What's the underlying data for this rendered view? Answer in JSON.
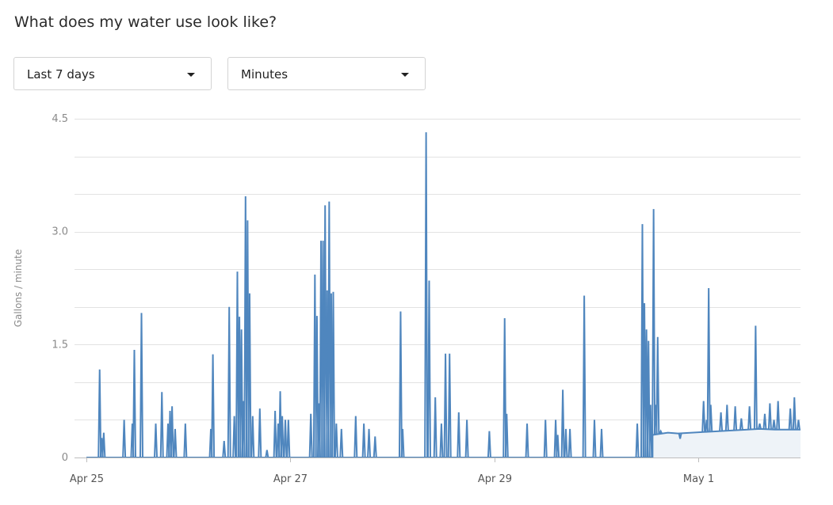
{
  "page": {
    "title": "What does my water use look like?"
  },
  "filters": {
    "range": {
      "selected": "Last 7 days"
    },
    "granularity": {
      "selected": "Minutes"
    }
  },
  "chart_data": {
    "type": "line",
    "title": "",
    "xlabel": "",
    "ylabel": "Gallons / minute",
    "ylim": [
      0,
      4.5
    ],
    "yticks": [
      {
        "value": 0,
        "label": "0"
      },
      {
        "value": 1.5,
        "label": "1.5"
      },
      {
        "value": 3.0,
        "label": "3.0"
      },
      {
        "value": 4.5,
        "label": "4.5"
      }
    ],
    "xlim": [
      0,
      7.0
    ],
    "xticks": [
      {
        "value": 0,
        "label": "Apr 25"
      },
      {
        "value": 2,
        "label": "Apr 27"
      },
      {
        "value": 4,
        "label": "Apr 29"
      },
      {
        "value": 6,
        "label": "May 1"
      }
    ],
    "x_unit": "days from Apr 25",
    "grid": true,
    "colors": {
      "line": "#4f86be",
      "area": "#eef3f8",
      "grid": "#e2e2e2"
    },
    "series": [
      {
        "baseline": 0.0,
        "spikes": [
          [
            0.13,
            1.17
          ],
          [
            0.15,
            0.26
          ],
          [
            0.17,
            0.33
          ],
          [
            0.37,
            0.5
          ],
          [
            0.45,
            0.45
          ],
          [
            0.47,
            1.43
          ],
          [
            0.54,
            1.92
          ],
          [
            0.68,
            0.45
          ],
          [
            0.74,
            0.87
          ],
          [
            0.8,
            0.45
          ],
          [
            0.82,
            0.62
          ],
          [
            0.84,
            0.68
          ],
          [
            0.87,
            0.38
          ],
          [
            0.97,
            0.45
          ],
          [
            1.22,
            0.38
          ],
          [
            1.24,
            1.37
          ],
          [
            1.35,
            0.22
          ],
          [
            1.4,
            2.0
          ],
          [
            1.45,
            0.55
          ],
          [
            1.48,
            2.47
          ],
          [
            1.5,
            1.87
          ],
          [
            1.52,
            1.7
          ],
          [
            1.54,
            0.75
          ],
          [
            1.56,
            3.47
          ],
          [
            1.58,
            3.15
          ],
          [
            1.6,
            2.18
          ],
          [
            1.63,
            0.55
          ],
          [
            1.7,
            0.65
          ],
          [
            1.77,
            0.1
          ],
          [
            1.85,
            0.62
          ],
          [
            1.88,
            0.45
          ],
          [
            1.9,
            0.88
          ],
          [
            1.92,
            0.55
          ],
          [
            1.95,
            0.5
          ],
          [
            1.98,
            0.5
          ],
          [
            2.2,
            0.58
          ],
          [
            2.24,
            2.43
          ],
          [
            2.26,
            1.88
          ],
          [
            2.28,
            0.72
          ],
          [
            2.3,
            2.88
          ],
          [
            2.32,
            2.88
          ],
          [
            2.34,
            3.35
          ],
          [
            2.36,
            2.22
          ],
          [
            2.38,
            3.4
          ],
          [
            2.4,
            2.18
          ],
          [
            2.42,
            2.2
          ],
          [
            2.45,
            0.45
          ],
          [
            2.5,
            0.38
          ],
          [
            2.64,
            0.55
          ],
          [
            2.72,
            0.45
          ],
          [
            2.77,
            0.38
          ],
          [
            2.83,
            0.28
          ],
          [
            3.08,
            1.94
          ],
          [
            3.1,
            0.38
          ],
          [
            3.33,
            4.32
          ],
          [
            3.36,
            2.35
          ],
          [
            3.42,
            0.8
          ],
          [
            3.48,
            0.45
          ],
          [
            3.52,
            1.38
          ],
          [
            3.56,
            1.38
          ],
          [
            3.65,
            0.6
          ],
          [
            3.73,
            0.5
          ],
          [
            3.95,
            0.35
          ],
          [
            4.1,
            1.85
          ],
          [
            4.12,
            0.58
          ],
          [
            4.32,
            0.45
          ],
          [
            4.5,
            0.5
          ],
          [
            4.6,
            0.5
          ],
          [
            4.62,
            0.3
          ],
          [
            4.67,
            0.9
          ],
          [
            4.7,
            0.38
          ],
          [
            4.74,
            0.38
          ],
          [
            4.88,
            2.15
          ],
          [
            4.98,
            0.5
          ],
          [
            5.05,
            0.38
          ]
        ],
        "settled": [
          [
            5.55,
            0.3
          ],
          [
            5.7,
            0.33
          ],
          [
            5.8,
            0.32
          ],
          [
            6.2,
            0.35
          ],
          [
            6.6,
            0.38
          ],
          [
            6.75,
            0.37
          ],
          [
            7.0,
            0.37
          ]
        ],
        "settled_spikes": [
          [
            5.4,
            0.45
          ],
          [
            5.45,
            3.1
          ],
          [
            5.47,
            2.05
          ],
          [
            5.49,
            1.7
          ],
          [
            5.51,
            1.55
          ],
          [
            5.53,
            0.7
          ],
          [
            5.56,
            3.3
          ],
          [
            5.58,
            0.7
          ],
          [
            5.6,
            1.6
          ],
          [
            5.63,
            0.35
          ],
          [
            5.82,
            0.25
          ],
          [
            6.05,
            0.75
          ],
          [
            6.08,
            0.5
          ],
          [
            6.1,
            2.25
          ],
          [
            6.12,
            0.7
          ],
          [
            6.22,
            0.6
          ],
          [
            6.28,
            0.7
          ],
          [
            6.36,
            0.68
          ],
          [
            6.42,
            0.52
          ],
          [
            6.5,
            0.68
          ],
          [
            6.56,
            1.75
          ],
          [
            6.6,
            0.45
          ],
          [
            6.65,
            0.58
          ],
          [
            6.7,
            0.72
          ],
          [
            6.74,
            0.5
          ],
          [
            6.78,
            0.75
          ],
          [
            6.9,
            0.65
          ],
          [
            6.94,
            0.8
          ],
          [
            6.98,
            0.5
          ]
        ]
      }
    ]
  }
}
